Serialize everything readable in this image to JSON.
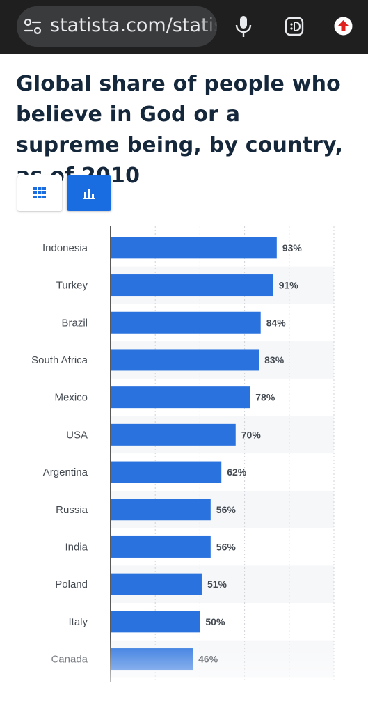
{
  "browser": {
    "url": "statista.com/statistics/",
    "icons": {
      "site_info": "tune-icon",
      "voice": "mic-icon",
      "lens": "lens-icon",
      "upload": "upload-icon"
    },
    "colors": {
      "bar": "#1f1f1f",
      "pill": "#3a3b3d",
      "upload": "#e0221f"
    }
  },
  "page": {
    "title": "Global share of people who believe in God or a supreme being, by country, as of 2010"
  },
  "view_toggle": {
    "table_icon": "grid-icon",
    "chart_icon": "bar-chart-icon",
    "active": "chart",
    "active_color": "#1a6de0"
  },
  "chart_data": {
    "type": "bar",
    "orientation": "horizontal",
    "title": "Global share of people who believe in God or a supreme being, by country, as of 2010",
    "categories": [
      "Indonesia",
      "Turkey",
      "Brazil",
      "South Africa",
      "Mexico",
      "USA",
      "Argentina",
      "Russia",
      "India",
      "Poland",
      "Italy",
      "Canada"
    ],
    "values": [
      93,
      91,
      84,
      83,
      78,
      70,
      62,
      56,
      56,
      51,
      50,
      46
    ],
    "value_labels": [
      "93%",
      "91%",
      "84%",
      "83%",
      "78%",
      "70%",
      "62%",
      "56%",
      "56%",
      "51%",
      "50%",
      "46%"
    ],
    "unit": "%",
    "xlim": [
      0,
      125
    ],
    "grid": true,
    "bar_color": "#2a72de"
  }
}
